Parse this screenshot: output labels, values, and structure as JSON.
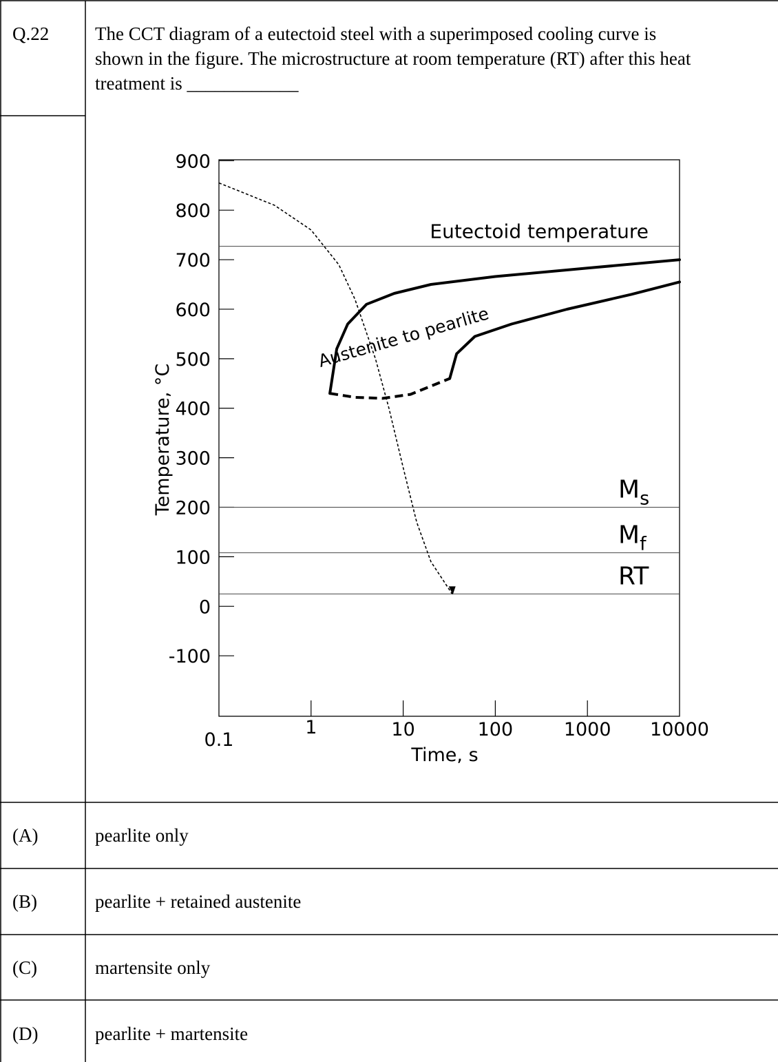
{
  "question": {
    "number": "Q.22",
    "text_lines": [
      "The CCT diagram of a eutectoid steel with a superimposed cooling curve is",
      "shown in the figure. The microstructure at room temperature (RT) after this heat",
      "treatment is ____________"
    ]
  },
  "options": [
    {
      "label": "(A)",
      "text": "pearlite only"
    },
    {
      "label": "(B)",
      "text": "pearlite + retained austenite"
    },
    {
      "label": "(C)",
      "text": "martensite only"
    },
    {
      "label": "(D)",
      "text": "pearlite + martensite"
    }
  ],
  "chart_data": {
    "type": "line",
    "xlabel": "Time, s",
    "ylabel": "Temperature, °C",
    "xscale": "log",
    "xlim": [
      0.1,
      10000
    ],
    "ylim": [
      -100,
      950
    ],
    "x_ticks": [
      "0.1",
      "1",
      "10",
      "100",
      "1000",
      "10000"
    ],
    "y_ticks": [
      "900",
      "800",
      "700",
      "600",
      "500",
      "400",
      "300",
      "200",
      "100",
      "0",
      "-100"
    ],
    "y_tick_values": [
      900,
      800,
      700,
      600,
      500,
      400,
      300,
      200,
      100,
      0,
      -100
    ],
    "x_tick_values": [
      0.1,
      1,
      10,
      100,
      1000,
      10000
    ],
    "horizontal_lines": [
      {
        "label": "Eutectoid temperature",
        "y": 727
      },
      {
        "label": "M",
        "sub": "s",
        "y": 200
      },
      {
        "label": "M",
        "sub": "f",
        "y": 108
      },
      {
        "label": "RT",
        "y": 25
      }
    ],
    "region_label": "Austenite to pearlite",
    "curves": [
      {
        "name": "start",
        "style": "solid",
        "points": [
          [
            1.6,
            430
          ],
          [
            1.9,
            520
          ],
          [
            2.5,
            570
          ],
          [
            4,
            610
          ],
          [
            8,
            632
          ],
          [
            20,
            650
          ],
          [
            100,
            666
          ],
          [
            1000,
            683
          ],
          [
            10000,
            700
          ]
        ]
      },
      {
        "name": "finish",
        "style": "solid",
        "points": [
          [
            32,
            460
          ],
          [
            38,
            510
          ],
          [
            60,
            545
          ],
          [
            150,
            570
          ],
          [
            600,
            600
          ],
          [
            3000,
            630
          ],
          [
            10000,
            655
          ]
        ]
      },
      {
        "name": "nose",
        "style": "dashed",
        "points": [
          [
            1.6,
            430
          ],
          [
            3,
            422
          ],
          [
            6,
            420
          ],
          [
            12,
            428
          ],
          [
            32,
            460
          ]
        ]
      },
      {
        "name": "cooling",
        "style": "dotted-arrow",
        "points": [
          [
            0.1,
            855
          ],
          [
            0.4,
            810
          ],
          [
            1,
            760
          ],
          [
            2,
            690
          ],
          [
            3,
            620
          ],
          [
            5,
            500
          ],
          [
            7,
            400
          ],
          [
            10,
            280
          ],
          [
            14,
            170
          ],
          [
            20,
            90
          ],
          [
            34,
            25
          ]
        ]
      }
    ]
  }
}
